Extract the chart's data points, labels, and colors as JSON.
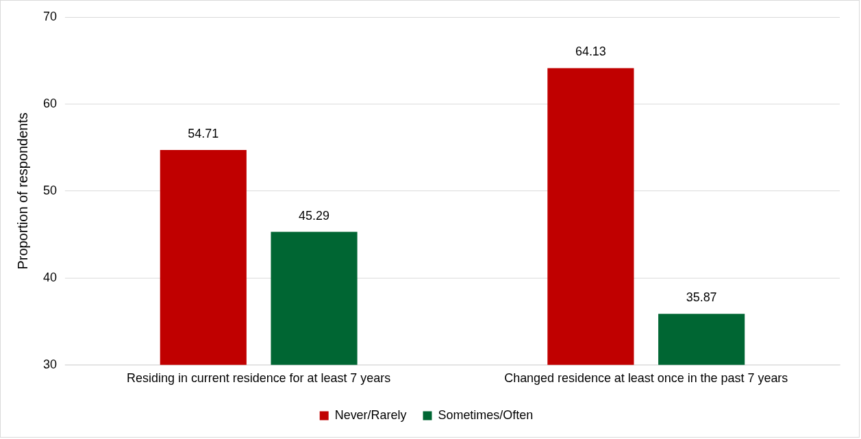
{
  "chart_data": {
    "type": "bar",
    "ylabel": "Proportion of respondents",
    "categories": [
      "Residing in current residence for at least 7 years",
      "Changed residence at least once in the past 7 years"
    ],
    "series": [
      {
        "name": "Never/Rarely",
        "color": "#c00000",
        "values": [
          54.71,
          64.13
        ]
      },
      {
        "name": "Sometimes/Often",
        "color": "#006633",
        "values": [
          45.29,
          35.87
        ]
      }
    ],
    "ylim": [
      30,
      70
    ],
    "yticks": [
      30,
      40,
      50,
      60,
      70
    ],
    "grid": "y",
    "legend": "bottom",
    "data_labels": true
  }
}
